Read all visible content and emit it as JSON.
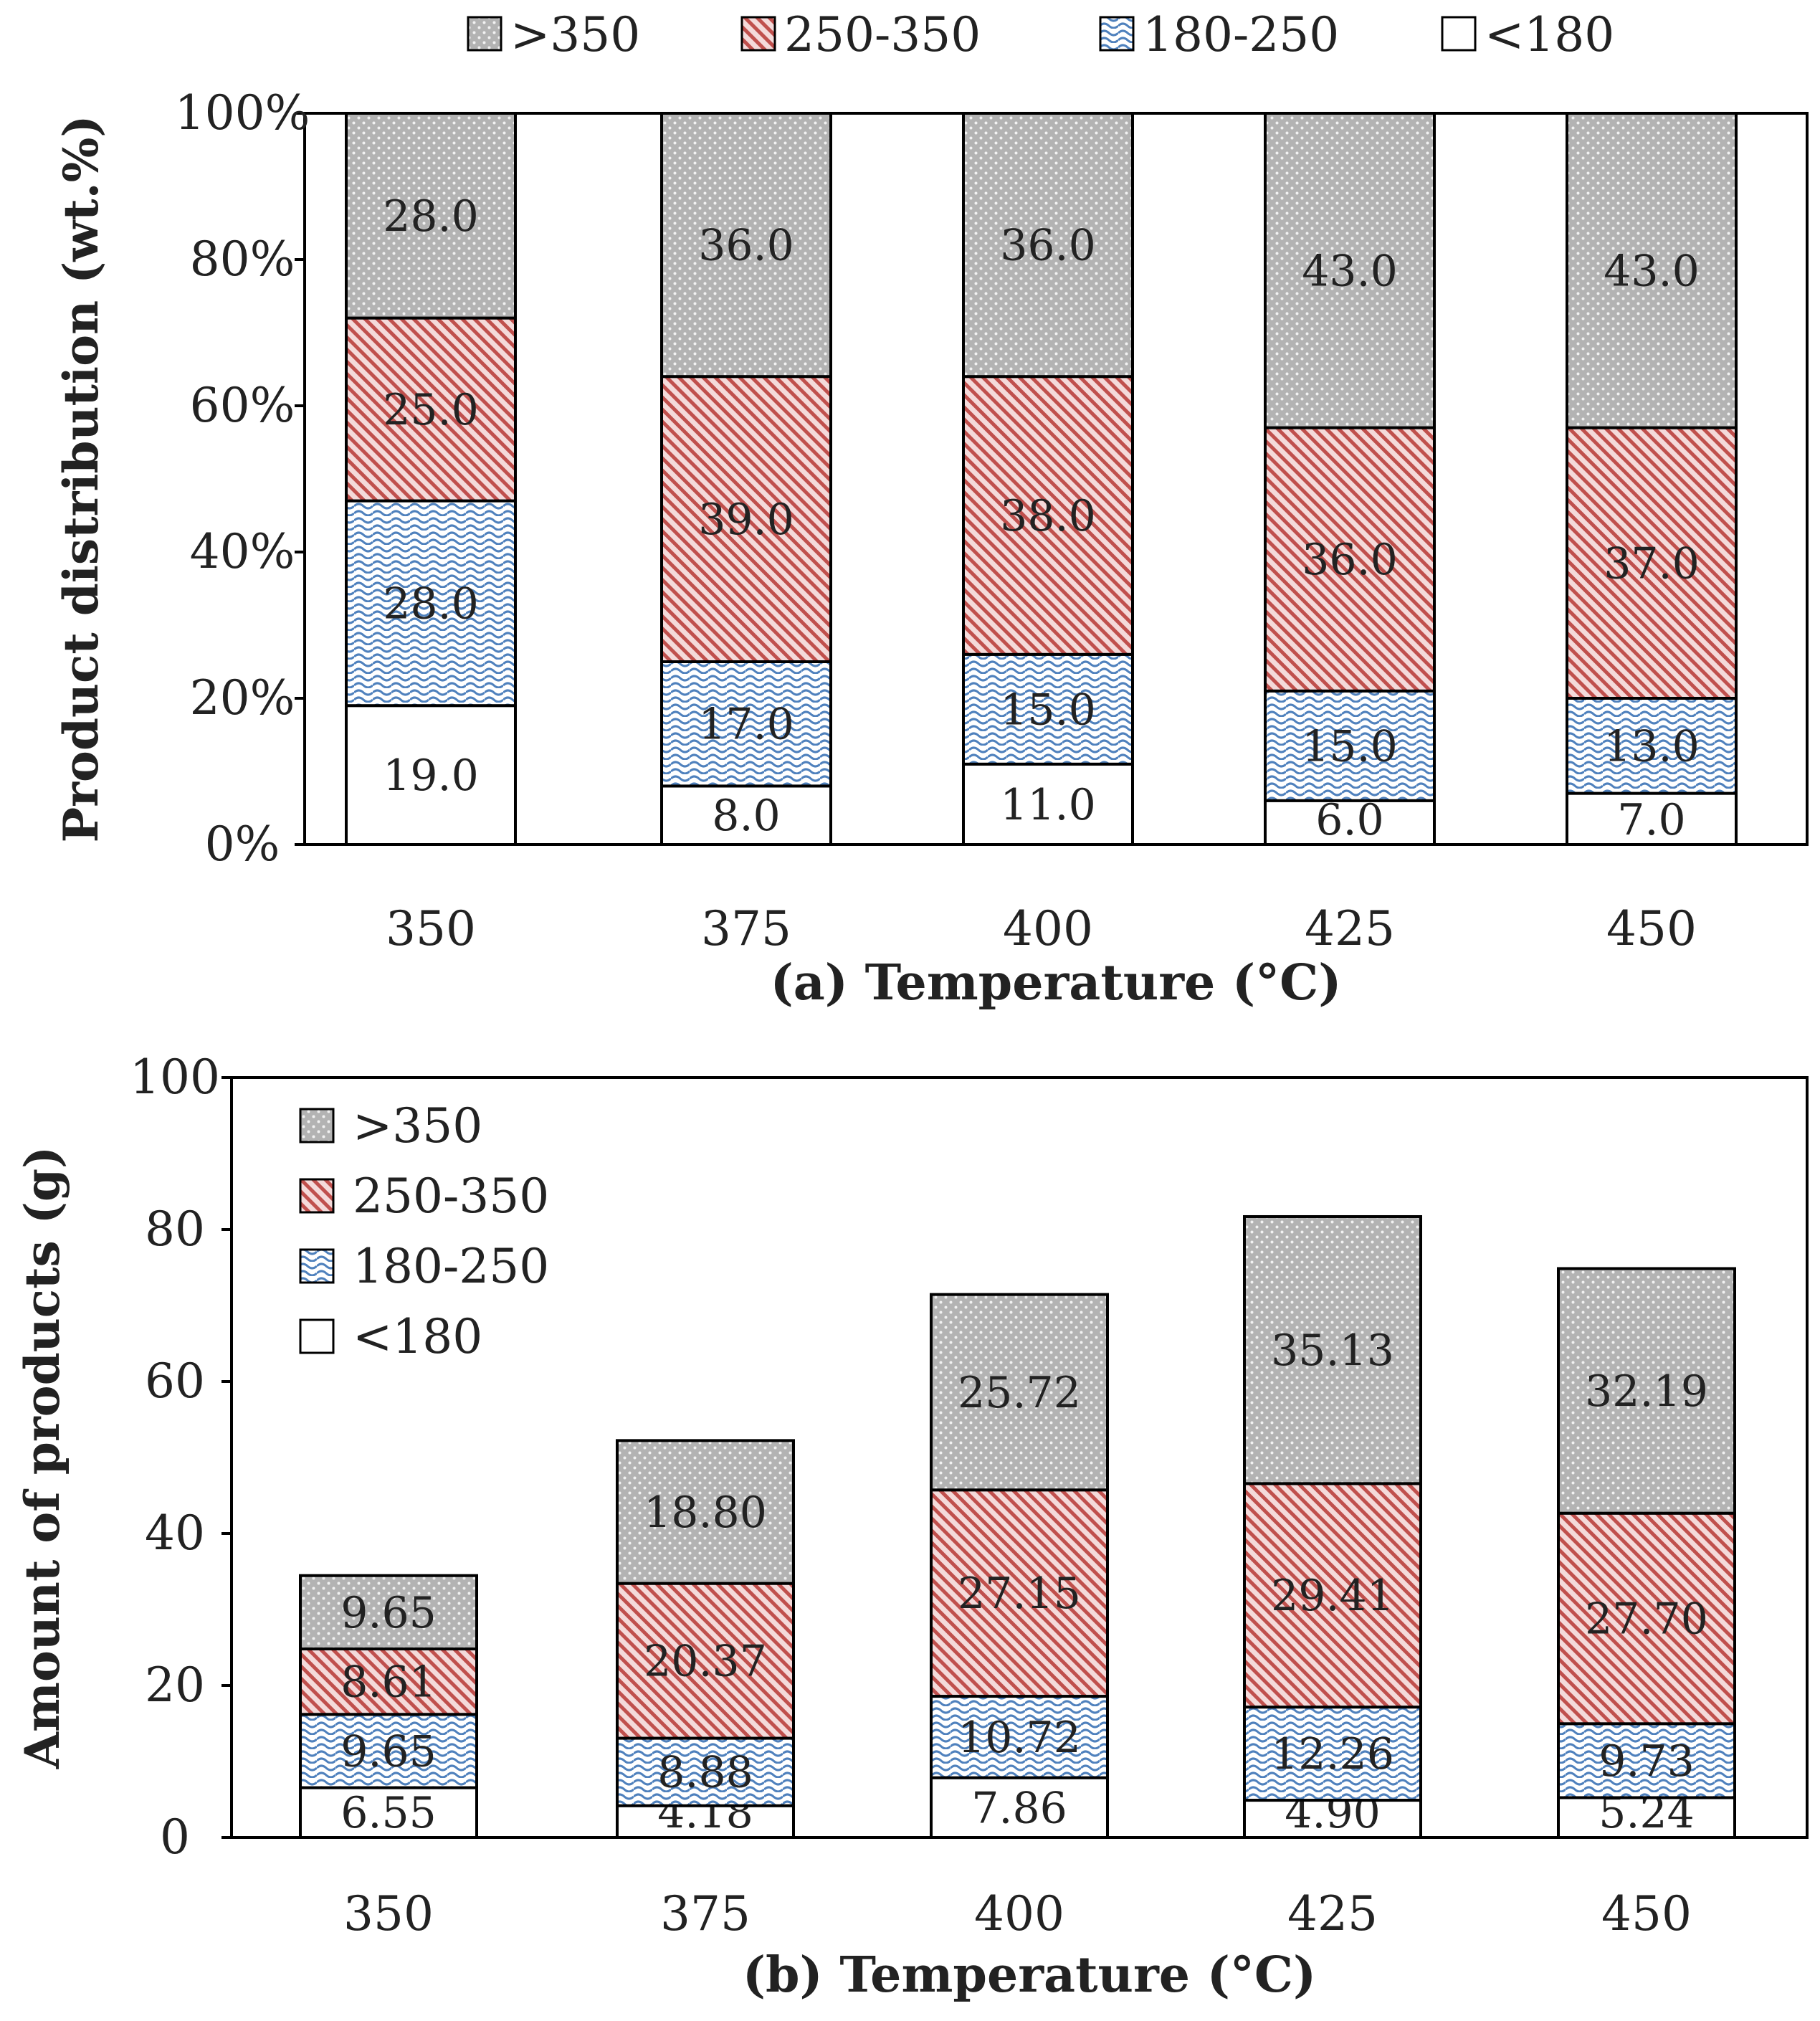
{
  "figure": {
    "colors": {
      "gt350": "#b2b2b2",
      "r250_350": "#c0504d",
      "r180_250": "#4f81bd",
      "lt180": "#ffffff"
    }
  },
  "chart_data": [
    {
      "type": "bar",
      "stacked": true,
      "xlabel": "(a) Temperature (°C)",
      "ylabel": "Product distribution (wt.%)",
      "categories": [
        "350",
        "375",
        "400",
        "425",
        "450"
      ],
      "ylim": [
        0,
        100
      ],
      "yticks": [
        "0%",
        "20%",
        "40%",
        "60%",
        "80%",
        "100%"
      ],
      "legend_position": "top",
      "grid": false,
      "series": [
        {
          "name": "<180",
          "key": "lt180",
          "values": [
            19.0,
            8.0,
            11.0,
            6.0,
            7.0
          ],
          "labels": [
            "19.0",
            "8.0",
            "11.0",
            "6.0",
            "7.0"
          ]
        },
        {
          "name": "180-250",
          "key": "r180_250",
          "values": [
            28.0,
            17.0,
            15.0,
            15.0,
            13.0
          ],
          "labels": [
            "28.0",
            "17.0",
            "15.0",
            "15.0",
            "13.0"
          ]
        },
        {
          "name": "250-350",
          "key": "r250_350",
          "values": [
            25.0,
            39.0,
            38.0,
            36.0,
            37.0
          ],
          "labels": [
            "25.0",
            "39.0",
            "38.0",
            "36.0",
            "37.0"
          ]
        },
        {
          "name": ">350",
          "key": "gt350",
          "values": [
            28.0,
            36.0,
            36.0,
            43.0,
            43.0
          ],
          "labels": [
            "28.0",
            "36.0",
            "36.0",
            "43.0",
            "43.0"
          ]
        }
      ]
    },
    {
      "type": "bar",
      "stacked": true,
      "xlabel": "(b) Temperature (°C)",
      "ylabel": "Amount of products (g)",
      "categories": [
        "350",
        "375",
        "400",
        "425",
        "450"
      ],
      "ylim": [
        0,
        100
      ],
      "yticks": [
        "0",
        "20",
        "40",
        "60",
        "80",
        "100"
      ],
      "legend_position": "top-left",
      "grid": false,
      "series": [
        {
          "name": "<180",
          "key": "lt180",
          "values": [
            6.55,
            4.18,
            7.86,
            4.9,
            5.24
          ],
          "labels": [
            "6.55",
            "4.18",
            "7.86",
            "4.90",
            "5.24"
          ]
        },
        {
          "name": "180-250",
          "key": "r180_250",
          "values": [
            9.65,
            8.88,
            10.72,
            12.26,
            9.73
          ],
          "labels": [
            "9.65",
            "8.88",
            "10.72",
            "12.26",
            "9.73"
          ]
        },
        {
          "name": "250-350",
          "key": "r250_350",
          "values": [
            8.61,
            20.37,
            27.15,
            29.41,
            27.7
          ],
          "labels": [
            "8.61",
            "20.37",
            "27.15",
            "29.41",
            "27.70"
          ]
        },
        {
          "name": ">350",
          "key": "gt350",
          "values": [
            9.65,
            18.8,
            25.72,
            35.13,
            32.19
          ],
          "labels": [
            "9.65",
            "18.80",
            "25.72",
            "35.13",
            "32.19"
          ]
        }
      ]
    }
  ]
}
